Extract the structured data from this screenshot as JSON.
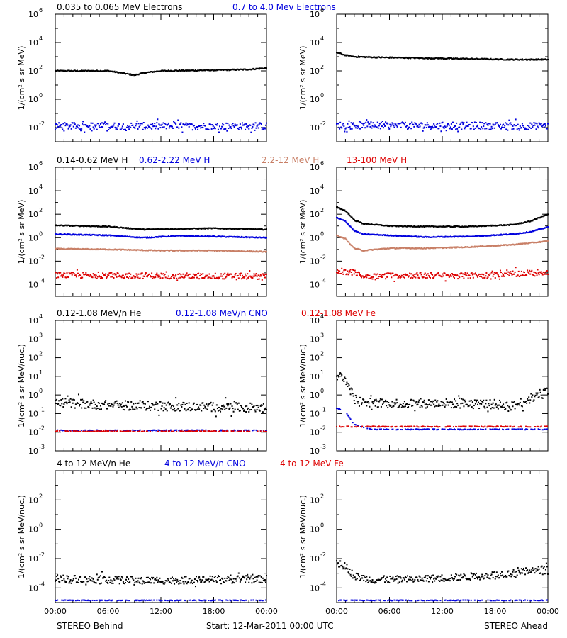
{
  "footer": {
    "left": "STEREO Behind",
    "center": "Start: 12-Mar-2011 00:00 UTC",
    "right": "STEREO Ahead"
  },
  "chart_data": [
    {
      "row": 0,
      "type": "scatter",
      "ylog": true,
      "yexp": [
        -3,
        6
      ],
      "yticks": [
        -2,
        0,
        2,
        4,
        6
      ],
      "ylabel": "1/(cm² s sr MeV)",
      "xlim": [
        0,
        24
      ],
      "xticks": [
        "00:00",
        "06:00",
        "12:00",
        "18:00",
        "00:00"
      ],
      "xlabel_visible": false,
      "header": [
        {
          "text": "0.035 to 0.065 MeV Electrons",
          "color": "#000000"
        },
        {
          "text": "0.7 to 4.0 Mev Electrons",
          "color": "#0000dd"
        }
      ],
      "behind": [
        {
          "name": "0.035 to 0.065 MeV Electrons",
          "color": "#000000",
          "points": [
            [
              0,
              2.0
            ],
            [
              6,
              2.0
            ],
            [
              8,
              1.8
            ],
            [
              9,
              1.7
            ],
            [
              10,
              1.85
            ],
            [
              12,
              2.0
            ],
            [
              18,
              2.05
            ],
            [
              22,
              2.1
            ],
            [
              24,
              2.2
            ]
          ]
        },
        {
          "name": "0.7 to 4.0 Mev Electrons",
          "color": "#0000dd",
          "scatter": true,
          "points": [
            [
              0,
              -1.9
            ],
            [
              24,
              -1.9
            ]
          ]
        }
      ],
      "ahead": [
        {
          "name": "0.035 to 0.065 MeV Electrons",
          "color": "#000000",
          "points": [
            [
              0,
              3.3
            ],
            [
              1,
              3.1
            ],
            [
              2,
              3.0
            ],
            [
              5,
              2.95
            ],
            [
              10,
              2.9
            ],
            [
              15,
              2.85
            ],
            [
              20,
              2.8
            ],
            [
              24,
              2.8
            ]
          ]
        },
        {
          "name": "0.7 to 4.0 Mev Electrons",
          "color": "#0000dd",
          "scatter": true,
          "points": [
            [
              0,
              -1.85
            ],
            [
              24,
              -1.9
            ]
          ]
        }
      ]
    },
    {
      "row": 1,
      "type": "scatter",
      "ylog": true,
      "yexp": [
        -5,
        6
      ],
      "yticks": [
        -4,
        -2,
        0,
        2,
        4,
        6
      ],
      "ylabel": "1/(cm² s sr MeV)",
      "xlim": [
        0,
        24
      ],
      "xticks": [
        "00:00",
        "06:00",
        "12:00",
        "18:00",
        "00:00"
      ],
      "xlabel_visible": false,
      "header": [
        {
          "text": "0.14-0.62 MeV H",
          "color": "#000000"
        },
        {
          "text": "0.62-2.22 MeV H",
          "color": "#0000dd"
        },
        {
          "text": "2.2-12 MeV H",
          "color": "#c87f66"
        },
        {
          "text": "13-100 MeV H",
          "color": "#dd0000"
        }
      ],
      "behind": [
        {
          "name": "0.14-0.62 MeV H",
          "color": "#000000",
          "points": [
            [
              0,
              1.05
            ],
            [
              6,
              0.95
            ],
            [
              10,
              0.7
            ],
            [
              14,
              0.75
            ],
            [
              18,
              0.8
            ],
            [
              24,
              0.7
            ]
          ]
        },
        {
          "name": "0.62-2.22 MeV H",
          "color": "#0000dd",
          "points": [
            [
              0,
              0.3
            ],
            [
              6,
              0.2
            ],
            [
              10,
              0.0
            ],
            [
              14,
              0.15
            ],
            [
              18,
              0.1
            ],
            [
              24,
              0.0
            ]
          ]
        },
        {
          "name": "2.2-12 MeV H",
          "color": "#c87f66",
          "points": [
            [
              0,
              -0.95
            ],
            [
              6,
              -1.0
            ],
            [
              12,
              -1.1
            ],
            [
              18,
              -1.1
            ],
            [
              24,
              -1.2
            ]
          ]
        },
        {
          "name": "13-100 MeV H",
          "color": "#dd0000",
          "scatter": true,
          "points": [
            [
              0,
              -3.2
            ],
            [
              12,
              -3.25
            ],
            [
              24,
              -3.3
            ]
          ]
        }
      ],
      "ahead": [
        {
          "name": "0.14-0.62 MeV H",
          "color": "#000000",
          "points": [
            [
              0,
              2.6
            ],
            [
              1,
              2.3
            ],
            [
              2,
              1.5
            ],
            [
              3,
              1.2
            ],
            [
              6,
              1.0
            ],
            [
              10,
              0.95
            ],
            [
              15,
              0.95
            ],
            [
              20,
              1.1
            ],
            [
              22,
              1.4
            ],
            [
              24,
              2.0
            ]
          ]
        },
        {
          "name": "0.62-2.22 MeV H",
          "color": "#0000dd",
          "points": [
            [
              0,
              1.7
            ],
            [
              1,
              1.4
            ],
            [
              2,
              0.6
            ],
            [
              3,
              0.3
            ],
            [
              6,
              0.2
            ],
            [
              10,
              0.05
            ],
            [
              15,
              0.1
            ],
            [
              20,
              0.3
            ],
            [
              22,
              0.5
            ],
            [
              24,
              0.9
            ]
          ]
        },
        {
          "name": "2.2-12 MeV H",
          "color": "#c87f66",
          "points": [
            [
              0,
              0.2
            ],
            [
              1,
              -0.1
            ],
            [
              2,
              -0.9
            ],
            [
              3,
              -1.1
            ],
            [
              6,
              -0.9
            ],
            [
              10,
              -0.9
            ],
            [
              15,
              -0.8
            ],
            [
              20,
              -0.6
            ],
            [
              24,
              -0.3
            ]
          ]
        },
        {
          "name": "13-100 MeV H",
          "color": "#dd0000",
          "scatter": true,
          "points": [
            [
              0,
              -2.8
            ],
            [
              2,
              -3.0
            ],
            [
              3,
              -3.3
            ],
            [
              8,
              -3.2
            ],
            [
              14,
              -3.25
            ],
            [
              18,
              -3.2
            ],
            [
              24,
              -2.9
            ]
          ]
        }
      ]
    },
    {
      "row": 2,
      "type": "scatter",
      "ylog": true,
      "yexp": [
        -3,
        4
      ],
      "yticks": [
        -3,
        -2,
        -1,
        0,
        1,
        2,
        3,
        4
      ],
      "ylabel": "1/(cm² s sr MeV/nuc.)",
      "xlim": [
        0,
        24
      ],
      "xticks": [
        "00:00",
        "06:00",
        "12:00",
        "18:00",
        "00:00"
      ],
      "xlabel_visible": false,
      "header": [
        {
          "text": "0.12-1.08 MeV/n He",
          "color": "#000000"
        },
        {
          "text": "0.12-1.08 MeV/n CNO",
          "color": "#0000dd"
        },
        {
          "text": "0.12-1.08 MeV Fe",
          "color": "#dd0000"
        }
      ],
      "behind": [
        {
          "name": "0.12-1.08 MeV/n He",
          "color": "#000000",
          "scatter": true,
          "points": [
            [
              0,
              -0.4
            ],
            [
              6,
              -0.55
            ],
            [
              12,
              -0.6
            ],
            [
              18,
              -0.65
            ],
            [
              24,
              -0.7
            ]
          ]
        },
        {
          "name": "0.12-1.08 MeV/n CNO",
          "color": "#0000dd",
          "scatter": true,
          "floor": true,
          "points": [
            [
              0,
              -1.9
            ],
            [
              24,
              -1.9
            ]
          ]
        },
        {
          "name": "0.12-1.08 MeV Fe",
          "color": "#dd0000",
          "scatter": true,
          "floor": true,
          "points": [
            [
              0,
              -1.95
            ],
            [
              24,
              -1.95
            ]
          ]
        }
      ],
      "ahead": [
        {
          "name": "0.12-1.08 MeV/n He",
          "color": "#000000",
          "scatter": true,
          "points": [
            [
              0,
              1.1
            ],
            [
              1,
              0.9
            ],
            [
              2,
              -0.2
            ],
            [
              3,
              -0.4
            ],
            [
              6,
              -0.45
            ],
            [
              12,
              -0.45
            ],
            [
              18,
              -0.5
            ],
            [
              20,
              -0.6
            ],
            [
              22,
              -0.2
            ],
            [
              24,
              0.3
            ]
          ]
        },
        {
          "name": "0.12-1.08 MeV/n CNO",
          "color": "#0000dd",
          "scatter": true,
          "floor": true,
          "points": [
            [
              0,
              -0.7
            ],
            [
              1,
              -0.9
            ],
            [
              2,
              -1.6
            ],
            [
              4,
              -1.85
            ],
            [
              24,
              -1.85
            ]
          ]
        },
        {
          "name": "0.12-1.08 MeV Fe",
          "color": "#dd0000",
          "scatter": true,
          "floor": true,
          "points": [
            [
              0,
              -1.7
            ],
            [
              24,
              -1.7
            ]
          ]
        }
      ]
    },
    {
      "row": 3,
      "type": "scatter",
      "ylog": true,
      "yexp": [
        -5,
        4
      ],
      "yticks": [
        -4,
        -2,
        0,
        2
      ],
      "ylabel": "1/(cm² s sr MeV/nuc.)",
      "xlim": [
        0,
        24
      ],
      "xticks": [
        "00:00",
        "06:00",
        "12:00",
        "18:00",
        "00:00"
      ],
      "xlabel_visible": true,
      "header": [
        {
          "text": "4 to 12 MeV/n He",
          "color": "#000000"
        },
        {
          "text": "4 to 12 MeV/n CNO",
          "color": "#0000dd"
        },
        {
          "text": "4 to 12 MeV Fe",
          "color": "#dd0000"
        }
      ],
      "behind": [
        {
          "name": "4 to 12 MeV/n He",
          "color": "#000000",
          "scatter": true,
          "points": [
            [
              0,
              -3.35
            ],
            [
              6,
              -3.45
            ],
            [
              12,
              -3.5
            ],
            [
              18,
              -3.45
            ],
            [
              24,
              -3.4
            ]
          ]
        },
        {
          "name": "4 to 12 MeV/n CNO",
          "color": "#0000dd",
          "scatter": true,
          "floor": true,
          "points": [
            [
              0,
              -4.85
            ],
            [
              24,
              -4.85
            ]
          ]
        }
      ],
      "ahead": [
        {
          "name": "4 to 12 MeV/n He",
          "color": "#000000",
          "scatter": true,
          "points": [
            [
              0,
              -2.3
            ],
            [
              1,
              -2.5
            ],
            [
              2,
              -3.2
            ],
            [
              4,
              -3.45
            ],
            [
              10,
              -3.4
            ],
            [
              16,
              -3.2
            ],
            [
              20,
              -3.0
            ],
            [
              24,
              -2.7
            ]
          ]
        },
        {
          "name": "4 to 12 MeV/n CNO",
          "color": "#0000dd",
          "scatter": true,
          "floor": true,
          "points": [
            [
              0,
              -4.85
            ],
            [
              24,
              -4.85
            ]
          ]
        }
      ]
    }
  ]
}
